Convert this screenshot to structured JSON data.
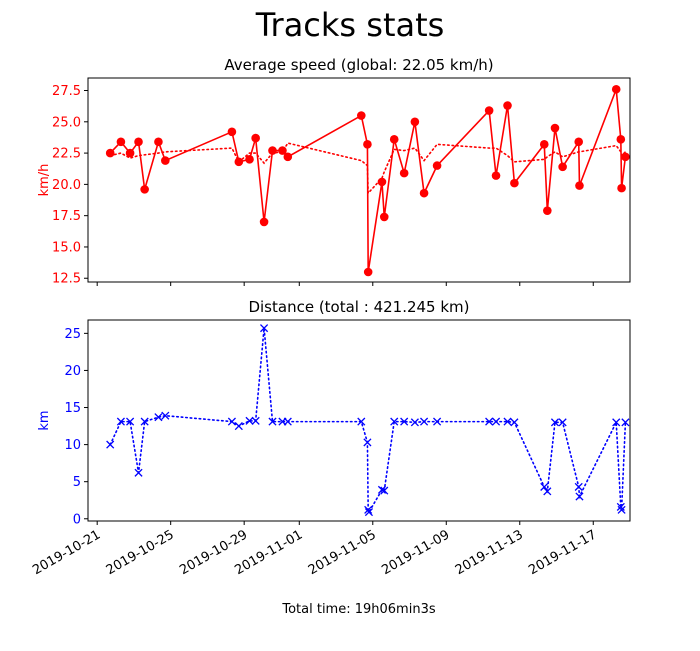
{
  "figure": {
    "title": "Tracks stats",
    "footer": "Total time:  19h06min3s"
  },
  "chart_data": [
    {
      "type": "line",
      "title": "Average speed (global: 22.05 km/h)",
      "xlabel": "",
      "ylabel": "km/h",
      "color": "#ff0000",
      "xlim": [
        "2019-10-20T12:00",
        "2019-11-19T00:00"
      ],
      "ylim": [
        12.2,
        28.5
      ],
      "yticks": [
        12.5,
        15.0,
        17.5,
        20.0,
        22.5,
        25.0,
        27.5
      ],
      "ytick_labels": [
        "12.5",
        "15.0",
        "17.5",
        "20.0",
        "22.5",
        "25.0",
        "27.5"
      ],
      "series": [
        {
          "marker": "circle",
          "style": "solid",
          "points": [
            [
              "2019-10-21T17:00",
              22.5
            ],
            [
              "2019-10-22T07:00",
              23.4
            ],
            [
              "2019-10-22T19:00",
              22.5
            ],
            [
              "2019-10-23T06:00",
              23.4
            ],
            [
              "2019-10-23T14:00",
              19.6
            ],
            [
              "2019-10-24T08:00",
              23.4
            ],
            [
              "2019-10-24T17:00",
              21.9
            ],
            [
              "2019-10-28T08:00",
              24.2
            ],
            [
              "2019-10-28T17:00",
              21.8
            ],
            [
              "2019-10-29T07:00",
              22.0
            ],
            [
              "2019-10-29T15:00",
              23.7
            ],
            [
              "2019-10-30T02:00",
              17.0
            ],
            [
              "2019-10-30T13:00",
              22.7
            ],
            [
              "2019-10-31T02:00",
              22.7
            ],
            [
              "2019-10-31T09:00",
              22.2
            ],
            [
              "2019-11-04T09:00",
              25.5
            ],
            [
              "2019-11-04T17:00",
              23.2
            ],
            [
              "2019-11-04T18:00",
              13.0
            ],
            [
              "2019-11-05T12:00",
              20.2
            ],
            [
              "2019-11-05T15:00",
              17.4
            ],
            [
              "2019-11-06T04:00",
              23.6
            ],
            [
              "2019-11-06T17:00",
              20.9
            ],
            [
              "2019-11-07T07:00",
              25.0
            ],
            [
              "2019-11-07T19:00",
              19.3
            ],
            [
              "2019-11-08T12:00",
              21.5
            ],
            [
              "2019-11-11T08:00",
              25.9
            ],
            [
              "2019-11-11T17:00",
              20.7
            ],
            [
              "2019-11-12T08:00",
              26.3
            ],
            [
              "2019-11-12T17:00",
              20.1
            ],
            [
              "2019-11-14T08:00",
              23.2
            ],
            [
              "2019-11-14T12:00",
              17.9
            ],
            [
              "2019-11-14T22:00",
              24.5
            ],
            [
              "2019-11-15T08:00",
              21.4
            ],
            [
              "2019-11-16T05:00",
              23.4
            ],
            [
              "2019-11-16T06:00",
              19.9
            ],
            [
              "2019-11-18T06:00",
              27.6
            ],
            [
              "2019-11-18T12:00",
              23.6
            ],
            [
              "2019-11-18T13:00",
              19.7
            ],
            [
              "2019-11-18T18:00",
              22.2
            ]
          ]
        },
        {
          "marker": "none",
          "style": "dotted",
          "points": [
            [
              "2019-10-21T17:00",
              22.3
            ],
            [
              "2019-10-22T07:00",
              22.5
            ],
            [
              "2019-10-22T19:00",
              22.1
            ],
            [
              "2019-10-23T06:00",
              22.3
            ],
            [
              "2019-10-24T08:00",
              22.5
            ],
            [
              "2019-10-24T17:00",
              22.6
            ],
            [
              "2019-10-28T08:00",
              22.9
            ],
            [
              "2019-10-28T17:00",
              21.8
            ],
            [
              "2019-10-29T07:00",
              22.5
            ],
            [
              "2019-10-29T15:00",
              22.5
            ],
            [
              "2019-10-30T02:00",
              21.7
            ],
            [
              "2019-10-30T13:00",
              22.5
            ],
            [
              "2019-10-31T02:00",
              22.6
            ],
            [
              "2019-10-31T09:00",
              23.3
            ],
            [
              "2019-11-04T09:00",
              21.9
            ],
            [
              "2019-11-04T17:00",
              21.5
            ],
            [
              "2019-11-04T18:00",
              19.3
            ],
            [
              "2019-11-05T12:00",
              20.5
            ],
            [
              "2019-11-05T15:00",
              21.0
            ],
            [
              "2019-11-06T04:00",
              22.8
            ],
            [
              "2019-11-06T17:00",
              22.7
            ],
            [
              "2019-11-07T07:00",
              22.9
            ],
            [
              "2019-11-07T19:00",
              21.9
            ],
            [
              "2019-11-08T12:00",
              23.2
            ],
            [
              "2019-11-11T08:00",
              22.9
            ],
            [
              "2019-11-11T17:00",
              22.9
            ],
            [
              "2019-11-12T08:00",
              22.3
            ],
            [
              "2019-11-12T17:00",
              21.8
            ],
            [
              "2019-11-14T08:00",
              22.0
            ],
            [
              "2019-11-14T12:00",
              22.2
            ],
            [
              "2019-11-14T22:00",
              22.6
            ],
            [
              "2019-11-15T08:00",
              22.2
            ],
            [
              "2019-11-16T05:00",
              22.6
            ],
            [
              "2019-11-16T06:00",
              22.6
            ],
            [
              "2019-11-18T06:00",
              23.1
            ],
            [
              "2019-11-18T12:00",
              22.6
            ],
            [
              "2019-11-18T13:00",
              22.3
            ],
            [
              "2019-11-18T18:00",
              22.6
            ]
          ]
        }
      ]
    },
    {
      "type": "line",
      "title": "Distance (total : 421.245 km)",
      "xlabel": "",
      "ylabel": "km",
      "color": "#0000ff",
      "xlim": [
        "2019-10-20T12:00",
        "2019-11-19T00:00"
      ],
      "ylim": [
        -0.3,
        26.8
      ],
      "yticks": [
        0,
        5,
        10,
        15,
        20,
        25
      ],
      "ytick_labels": [
        "0",
        "5",
        "10",
        "15",
        "20",
        "25"
      ],
      "xticks": [
        "2019-10-21",
        "2019-10-25",
        "2019-10-29",
        "2019-11-01",
        "2019-11-05",
        "2019-11-09",
        "2019-11-13",
        "2019-11-17"
      ],
      "xtick_labels": [
        "2019-10-21",
        "2019-10-25",
        "2019-10-29",
        "2019-11-01",
        "2019-11-05",
        "2019-11-09",
        "2019-11-13",
        "2019-11-17"
      ],
      "series": [
        {
          "marker": "x",
          "style": "dotted",
          "points": [
            [
              "2019-10-21T17:00",
              10.0
            ],
            [
              "2019-10-22T07:00",
              13.1
            ],
            [
              "2019-10-22T19:00",
              13.1
            ],
            [
              "2019-10-23T06:00",
              6.2
            ],
            [
              "2019-10-23T14:00",
              13.1
            ],
            [
              "2019-10-24T08:00",
              13.7
            ],
            [
              "2019-10-24T17:00",
              13.9
            ],
            [
              "2019-10-28T08:00",
              13.1
            ],
            [
              "2019-10-28T17:00",
              12.5
            ],
            [
              "2019-10-29T07:00",
              13.2
            ],
            [
              "2019-10-29T15:00",
              13.2
            ],
            [
              "2019-10-30T02:00",
              25.7
            ],
            [
              "2019-10-30T13:00",
              13.1
            ],
            [
              "2019-10-31T02:00",
              13.1
            ],
            [
              "2019-10-31T09:00",
              13.1
            ],
            [
              "2019-11-04T09:00",
              13.1
            ],
            [
              "2019-11-04T17:00",
              10.3
            ],
            [
              "2019-11-04T18:00",
              1.2
            ],
            [
              "2019-11-04T19:00",
              0.9
            ],
            [
              "2019-11-05T12:00",
              3.9
            ],
            [
              "2019-11-05T15:00",
              3.8
            ],
            [
              "2019-11-06T04:00",
              13.1
            ],
            [
              "2019-11-06T17:00",
              13.1
            ],
            [
              "2019-11-07T07:00",
              13.0
            ],
            [
              "2019-11-07T19:00",
              13.1
            ],
            [
              "2019-11-08T12:00",
              13.1
            ],
            [
              "2019-11-11T08:00",
              13.1
            ],
            [
              "2019-11-11T17:00",
              13.1
            ],
            [
              "2019-11-12T08:00",
              13.1
            ],
            [
              "2019-11-12T17:00",
              13.0
            ],
            [
              "2019-11-14T08:00",
              4.3
            ],
            [
              "2019-11-14T12:00",
              3.7
            ],
            [
              "2019-11-14T22:00",
              13.0
            ],
            [
              "2019-11-15T08:00",
              13.0
            ],
            [
              "2019-11-16T05:00",
              4.3
            ],
            [
              "2019-11-16T06:00",
              3.0
            ],
            [
              "2019-11-18T06:00",
              13.0
            ],
            [
              "2019-11-18T12:00",
              1.6
            ],
            [
              "2019-11-18T13:00",
              1.2
            ],
            [
              "2019-11-18T18:00",
              13.0
            ]
          ]
        }
      ]
    }
  ]
}
